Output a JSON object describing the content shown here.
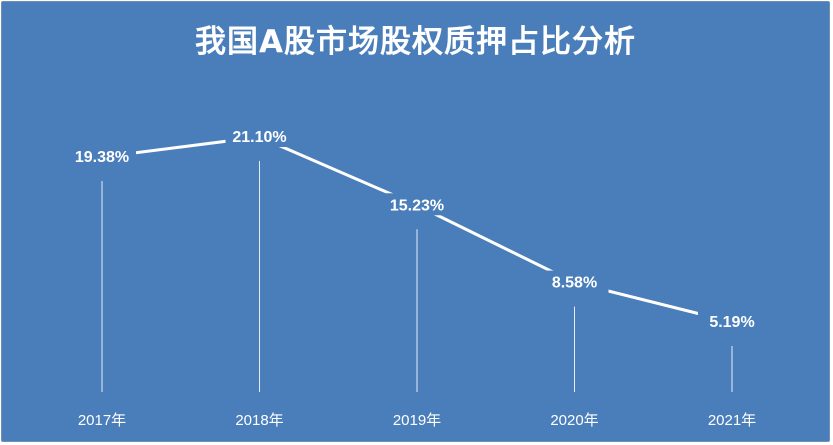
{
  "chart_data": {
    "type": "line",
    "title": "我国A股市场股权质押占比分析",
    "categories": [
      "2017年",
      "2018年",
      "2019年",
      "2020年",
      "2021年"
    ],
    "series": [
      {
        "values": [
          19.38,
          21.1,
          15.23,
          8.58,
          5.19
        ]
      }
    ],
    "data_labels": [
      "19.38%",
      "21.10%",
      "15.23%",
      "8.58%",
      "5.19%"
    ],
    "xlabel": "",
    "ylabel": "",
    "grid": false,
    "drop_lines": true,
    "colors": {
      "background": "#4a7ebb",
      "line": "#ffffff",
      "text": "#ffffff"
    }
  }
}
